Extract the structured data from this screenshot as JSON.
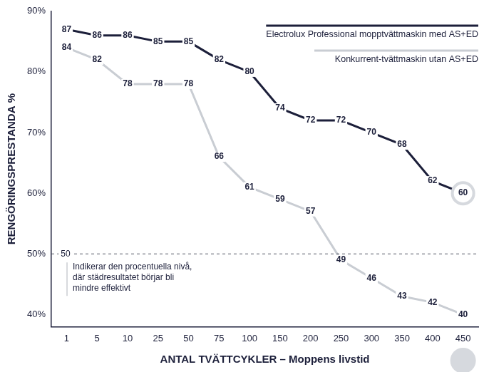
{
  "chart_data": {
    "type": "line",
    "x_label": "ANTAL TVÄTTCYKLER – Moppens livstid",
    "y_label": "RENGÖRINGSPRESTANDA %",
    "categories": [
      "1",
      "5",
      "10",
      "25",
      "50",
      "75",
      "100",
      "150",
      "200",
      "250",
      "300",
      "350",
      "400",
      "450"
    ],
    "series": [
      {
        "name": "Electrolux Professional mopptvättmaskin med AS+ED",
        "color": "#1c1f3a",
        "line_style": "solid",
        "values": [
          87,
          86,
          86,
          85,
          85,
          82,
          80,
          74,
          72,
          72,
          70,
          68,
          62,
          60
        ]
      },
      {
        "name": "Konkurrent-tvättmaskin utan AS+ED",
        "color": "#c9cdd3",
        "line_style": "solid",
        "values": [
          84,
          82,
          78,
          78,
          78,
          66,
          61,
          59,
          57,
          49,
          46,
          43,
          42,
          40
        ]
      }
    ],
    "ylim": [
      38,
      90
    ],
    "yticks": [
      {
        "value": 40,
        "label": "40%"
      },
      {
        "value": 50,
        "label": "50%"
      },
      {
        "value": 60,
        "label": "60%"
      },
      {
        "value": 70,
        "label": "70%"
      },
      {
        "value": 80,
        "label": "80%"
      },
      {
        "value": 90,
        "label": "90%"
      }
    ],
    "grid": false,
    "legend": "top-right",
    "data_labels": true,
    "annotations": [
      {
        "y": 50,
        "label": "50",
        "text": [
          "Indikerar den procentuella nivå,",
          "där städresultatet börjar bli",
          "mindre effektivt"
        ]
      }
    ]
  }
}
